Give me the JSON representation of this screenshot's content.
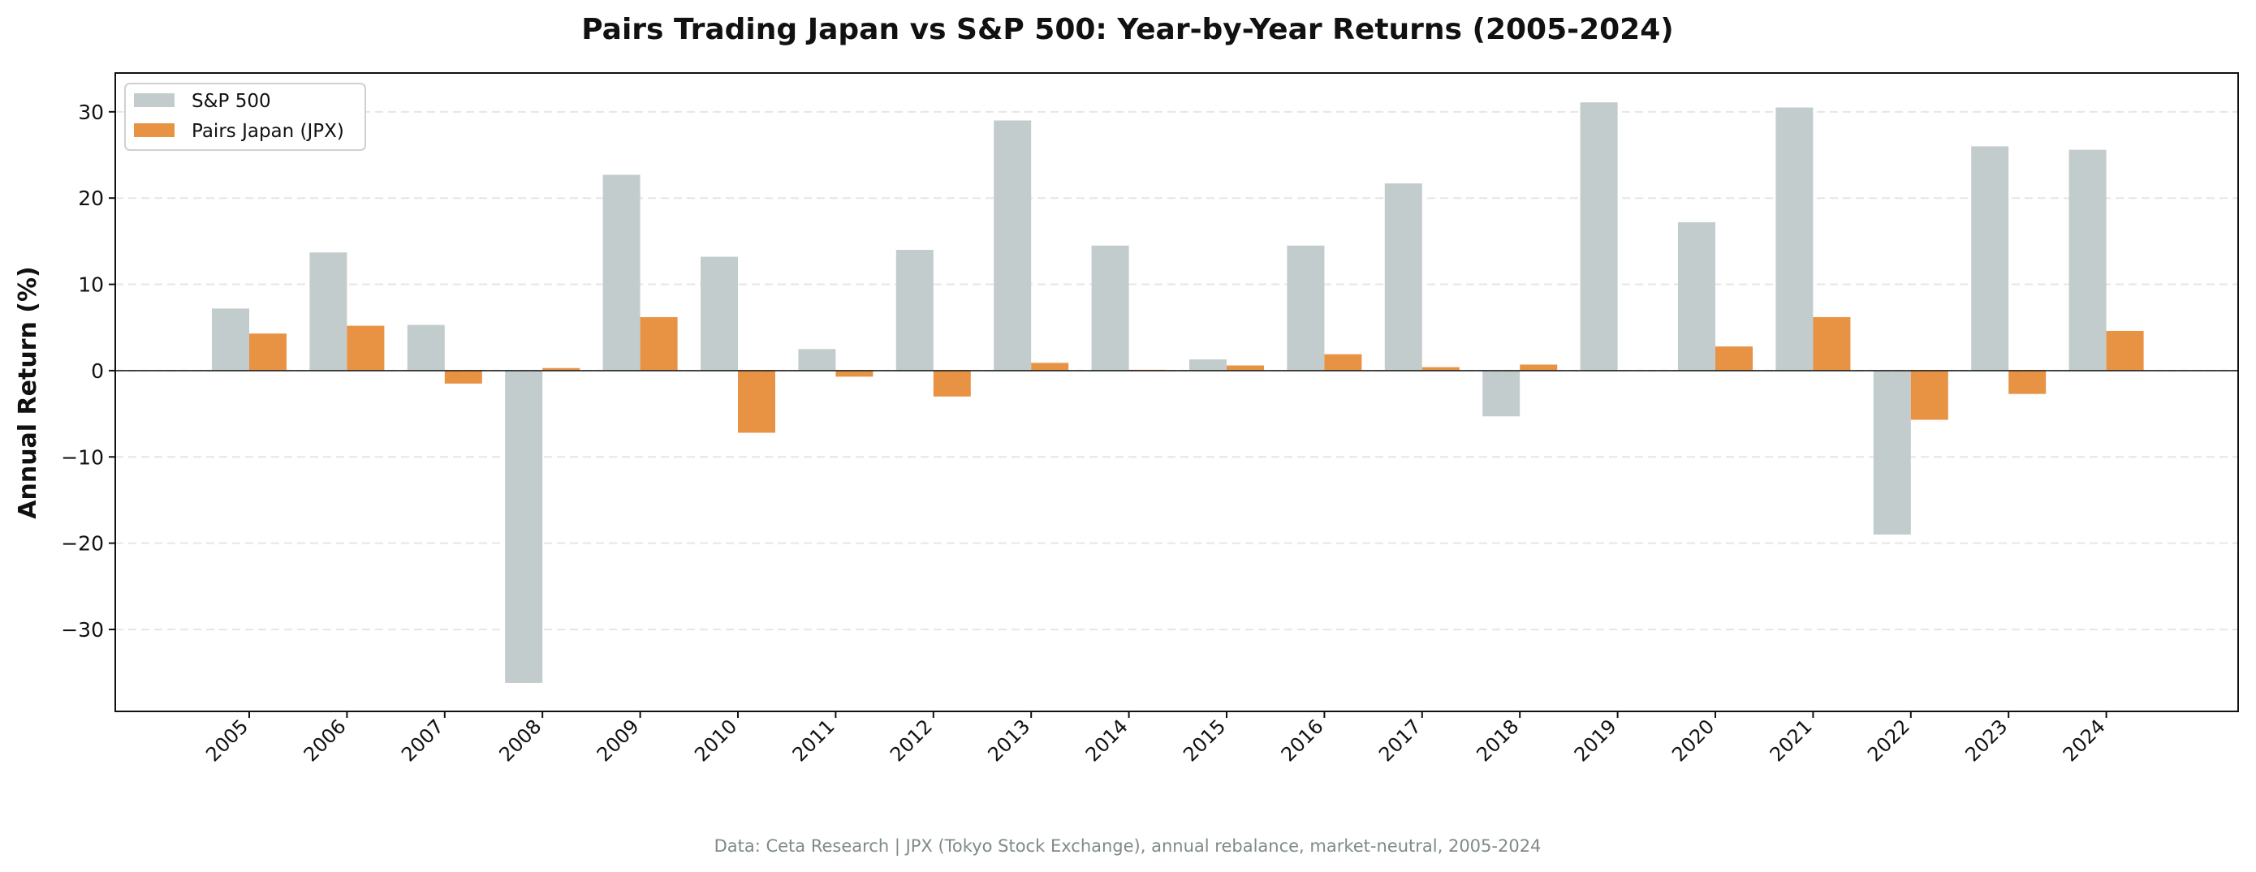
{
  "chart_data": {
    "type": "bar",
    "title": "Pairs Trading Japan vs S&P 500: Year-by-Year Returns (2005-2024)",
    "xlabel": "",
    "ylabel": "Annual Return (%)",
    "ylim": [
      -39.5,
      34.5
    ],
    "yticks": [
      -30,
      -20,
      -10,
      0,
      10,
      20,
      30
    ],
    "grid": "horizontal dashed",
    "legend_position": "top-left",
    "categories": [
      "2005",
      "2006",
      "2007",
      "2008",
      "2009",
      "2010",
      "2011",
      "2012",
      "2013",
      "2014",
      "2015",
      "2016",
      "2017",
      "2018",
      "2019",
      "2020",
      "2021",
      "2022",
      "2023",
      "2024"
    ],
    "series": [
      {
        "name": "S&P 500",
        "color": "#c3cccc",
        "values": [
          7.2,
          13.7,
          5.3,
          -36.2,
          22.7,
          13.2,
          2.5,
          14.0,
          29.0,
          14.5,
          1.3,
          14.5,
          21.7,
          -5.3,
          31.1,
          17.2,
          30.5,
          -19.0,
          26.0,
          25.6
        ]
      },
      {
        "name": "Pairs Japan (JPX)",
        "color": "#e89244",
        "values": [
          4.3,
          5.2,
          -1.5,
          0.3,
          6.2,
          -7.2,
          -0.7,
          -3.0,
          0.9,
          0.1,
          0.6,
          1.9,
          0.4,
          0.7,
          0.0,
          2.8,
          6.2,
          -5.7,
          -2.7,
          4.6
        ]
      }
    ],
    "footnote": "Data: Ceta Research | JPX (Tokyo Stock Exchange), annual rebalance, market-neutral, 2005-2024"
  }
}
